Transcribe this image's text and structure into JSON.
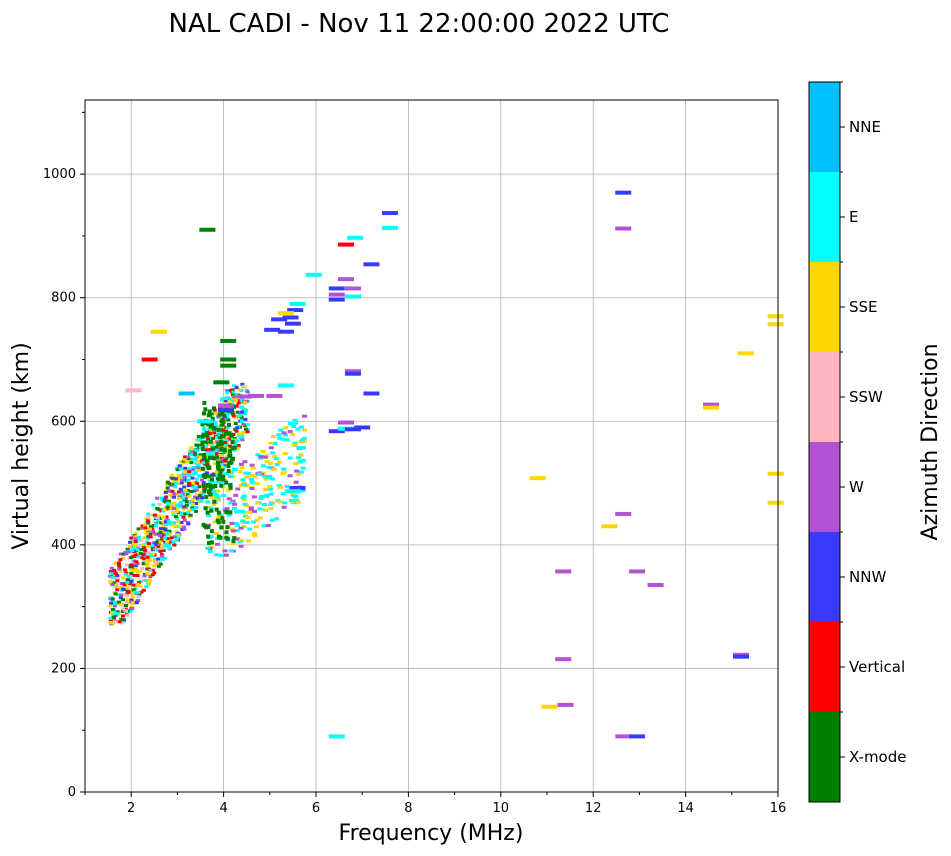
{
  "chart_data": {
    "type": "scatter",
    "title": "NAL CADI - Nov 11 22:00:00 2022 UTC",
    "xlabel": "Frequency (MHz)",
    "ylabel": "Virtual height (km)",
    "xlim": [
      1,
      16
    ],
    "ylim": [
      0,
      1120
    ],
    "xticks": [
      2,
      4,
      6,
      8,
      10,
      12,
      14,
      16
    ],
    "yticks": [
      0,
      200,
      400,
      600,
      800,
      1000
    ],
    "grid": true,
    "colorbar": {
      "title": "Azimuth Direction",
      "categories": [
        {
          "name": "X-mode",
          "color": "#008000"
        },
        {
          "name": "Vertical",
          "color": "#ff0000"
        },
        {
          "name": "NNW",
          "color": "#3a3aff"
        },
        {
          "name": "W",
          "color": "#b452d4"
        },
        {
          "name": "SSW",
          "color": "#ffb6c1"
        },
        {
          "name": "SSE",
          "color": "#ffd700"
        },
        {
          "name": "E",
          "color": "#00ffff"
        },
        {
          "name": "NNE",
          "color": "#00bfff"
        }
      ]
    },
    "points": [
      {
        "f": 12.65,
        "h": 970,
        "d": "NNW"
      },
      {
        "f": 12.65,
        "h": 912,
        "d": "W"
      },
      {
        "f": 7.6,
        "h": 937,
        "d": "NNW"
      },
      {
        "f": 7.6,
        "h": 913,
        "d": "E"
      },
      {
        "f": 6.85,
        "h": 897,
        "d": "E"
      },
      {
        "f": 6.65,
        "h": 886,
        "d": "Vertical"
      },
      {
        "f": 7.2,
        "h": 854,
        "d": "NNW"
      },
      {
        "f": 5.95,
        "h": 837,
        "d": "E"
      },
      {
        "f": 6.65,
        "h": 830,
        "d": "W"
      },
      {
        "f": 6.45,
        "h": 815,
        "d": "NNW"
      },
      {
        "f": 6.45,
        "h": 805,
        "d": "W"
      },
      {
        "f": 6.45,
        "h": 797,
        "d": "NNW"
      },
      {
        "f": 6.8,
        "h": 815,
        "d": "W"
      },
      {
        "f": 6.8,
        "h": 802,
        "d": "E"
      },
      {
        "f": 5.6,
        "h": 790,
        "d": "E"
      },
      {
        "f": 5.55,
        "h": 780,
        "d": "NNW"
      },
      {
        "f": 5.35,
        "h": 775,
        "d": "SSE"
      },
      {
        "f": 5.45,
        "h": 768,
        "d": "NNW"
      },
      {
        "f": 5.2,
        "h": 765,
        "d": "NNW"
      },
      {
        "f": 5.5,
        "h": 758,
        "d": "NNW"
      },
      {
        "f": 5.05,
        "h": 748,
        "d": "NNW"
      },
      {
        "f": 5.35,
        "h": 745,
        "d": "NNW"
      },
      {
        "f": 6.8,
        "h": 681,
        "d": "W"
      },
      {
        "f": 6.8,
        "h": 677,
        "d": "NNW"
      },
      {
        "f": 7.2,
        "h": 645,
        "d": "NNW"
      },
      {
        "f": 5.35,
        "h": 658,
        "d": "E"
      },
      {
        "f": 4.45,
        "h": 640,
        "d": "W"
      },
      {
        "f": 4.7,
        "h": 641,
        "d": "W"
      },
      {
        "f": 5.1,
        "h": 641,
        "d": "W"
      },
      {
        "f": 6.45,
        "h": 584,
        "d": "NNW"
      },
      {
        "f": 6.65,
        "h": 598,
        "d": "W"
      },
      {
        "f": 6.65,
        "h": 588,
        "d": "E"
      },
      {
        "f": 6.8,
        "h": 587,
        "d": "NNW"
      },
      {
        "f": 7.0,
        "h": 590,
        "d": "NNW"
      },
      {
        "f": 5.6,
        "h": 492,
        "d": "NNW"
      },
      {
        "f": 5.5,
        "h": 487,
        "d": "E"
      },
      {
        "f": 10.8,
        "h": 508,
        "d": "SSE"
      },
      {
        "f": 12.35,
        "h": 430,
        "d": "SSE"
      },
      {
        "f": 12.65,
        "h": 450,
        "d": "W"
      },
      {
        "f": 11.35,
        "h": 357,
        "d": "W"
      },
      {
        "f": 12.95,
        "h": 357,
        "d": "W"
      },
      {
        "f": 13.35,
        "h": 335,
        "d": "W"
      },
      {
        "f": 11.35,
        "h": 215,
        "d": "W"
      },
      {
        "f": 15.2,
        "h": 222,
        "d": "W"
      },
      {
        "f": 15.2,
        "h": 219,
        "d": "NNW"
      },
      {
        "f": 11.05,
        "h": 138,
        "d": "SSE"
      },
      {
        "f": 11.4,
        "h": 141,
        "d": "W"
      },
      {
        "f": 12.65,
        "h": 90,
        "d": "W"
      },
      {
        "f": 12.95,
        "h": 90,
        "d": "NNW"
      },
      {
        "f": 6.45,
        "h": 90,
        "d": "E"
      },
      {
        "f": 14.55,
        "h": 627,
        "d": "W"
      },
      {
        "f": 14.55,
        "h": 622,
        "d": "SSE"
      },
      {
        "f": 15.3,
        "h": 710,
        "d": "SSE"
      },
      {
        "f": 15.95,
        "h": 770,
        "d": "SSE"
      },
      {
        "f": 15.95,
        "h": 757,
        "d": "SSE"
      },
      {
        "f": 15.95,
        "h": 515,
        "d": "SSE"
      },
      {
        "f": 15.95,
        "h": 468,
        "d": "SSE"
      },
      {
        "f": 3.65,
        "h": 910,
        "d": "X-mode"
      },
      {
        "f": 4.1,
        "h": 730,
        "d": "X-mode"
      },
      {
        "f": 4.1,
        "h": 700,
        "d": "X-mode"
      },
      {
        "f": 4.1,
        "h": 690,
        "d": "X-mode"
      },
      {
        "f": 3.95,
        "h": 663,
        "d": "X-mode"
      },
      {
        "f": 2.4,
        "h": 700,
        "d": "Vertical"
      },
      {
        "f": 2.6,
        "h": 745,
        "d": "SSE"
      },
      {
        "f": 3.2,
        "h": 645,
        "d": "NNE"
      },
      {
        "f": 2.05,
        "h": 650,
        "d": "SSW"
      },
      {
        "f": 4.05,
        "h": 625,
        "d": "W"
      },
      {
        "f": 4.05,
        "h": 618,
        "d": "NNW"
      },
      {
        "f": 3.6,
        "h": 600,
        "d": "E"
      }
    ]
  }
}
